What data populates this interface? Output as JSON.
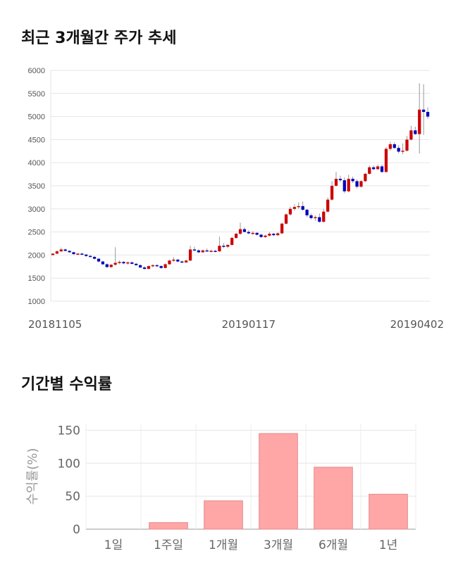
{
  "headings": {
    "price_chart": "최근 3개월간 주가 추세",
    "returns_chart": "기간별 수익률"
  },
  "chart_data": [
    {
      "type": "candlestick",
      "ylim": [
        1000,
        6000
      ],
      "yticks": [
        1000,
        1500,
        2000,
        2500,
        3000,
        3500,
        4000,
        4500,
        5000,
        5500,
        6000
      ],
      "xticks": [
        {
          "index": 0,
          "label": "20181105"
        },
        {
          "index": 47,
          "label": "20190117"
        },
        {
          "index": 97,
          "label": "20190402"
        }
      ],
      "grid": true,
      "colors": {
        "up": "#cc0000",
        "down": "#0000bb",
        "wick": "#999999"
      },
      "candles": [
        [
          2000,
          2040,
          1990,
          2030
        ],
        [
          2030,
          2100,
          2020,
          2080
        ],
        [
          2080,
          2160,
          2060,
          2120
        ],
        [
          2120,
          2140,
          2080,
          2090
        ],
        [
          2090,
          2100,
          2050,
          2060
        ],
        [
          2060,
          2070,
          2010,
          2020
        ],
        [
          2020,
          2040,
          2000,
          2030
        ],
        [
          2030,
          2050,
          2000,
          2010
        ],
        [
          2010,
          2020,
          1960,
          1980
        ],
        [
          1980,
          2000,
          1950,
          1960
        ],
        [
          1960,
          1980,
          1900,
          1920
        ],
        [
          1920,
          1930,
          1840,
          1860
        ],
        [
          1860,
          1870,
          1780,
          1800
        ],
        [
          1800,
          1820,
          1720,
          1740
        ],
        [
          1740,
          1800,
          1720,
          1790
        ],
        [
          1790,
          2170,
          1770,
          1830
        ],
        [
          1830,
          1880,
          1800,
          1850
        ],
        [
          1850,
          1870,
          1800,
          1820
        ],
        [
          1820,
          1860,
          1790,
          1840
        ],
        [
          1840,
          1860,
          1800,
          1810
        ],
        [
          1810,
          1830,
          1770,
          1780
        ],
        [
          1780,
          1800,
          1720,
          1730
        ],
        [
          1730,
          1760,
          1680,
          1700
        ],
        [
          1700,
          1770,
          1690,
          1760
        ],
        [
          1760,
          1800,
          1730,
          1780
        ],
        [
          1780,
          1800,
          1740,
          1760
        ],
        [
          1760,
          1780,
          1700,
          1720
        ],
        [
          1720,
          1820,
          1710,
          1800
        ],
        [
          1800,
          1900,
          1790,
          1880
        ],
        [
          1880,
          1950,
          1850,
          1900
        ],
        [
          1900,
          1920,
          1840,
          1860
        ],
        [
          1860,
          1880,
          1820,
          1840
        ],
        [
          1840,
          1900,
          1830,
          1880
        ],
        [
          1880,
          2200,
          1870,
          2120
        ],
        [
          2120,
          2180,
          2080,
          2100
        ],
        [
          2100,
          2130,
          2040,
          2060
        ],
        [
          2060,
          2120,
          2050,
          2100
        ],
        [
          2100,
          2140,
          2070,
          2080
        ],
        [
          2080,
          2120,
          2060,
          2090
        ],
        [
          2090,
          2110,
          2060,
          2080
        ],
        [
          2080,
          2400,
          2070,
          2200
        ],
        [
          2200,
          2260,
          2150,
          2180
        ],
        [
          2180,
          2230,
          2150,
          2220
        ],
        [
          2220,
          2400,
          2200,
          2370
        ],
        [
          2370,
          2480,
          2350,
          2460
        ],
        [
          2460,
          2700,
          2440,
          2560
        ],
        [
          2560,
          2600,
          2490,
          2500
        ],
        [
          2500,
          2540,
          2450,
          2470
        ],
        [
          2470,
          2520,
          2440,
          2480
        ],
        [
          2480,
          2500,
          2420,
          2440
        ],
        [
          2440,
          2460,
          2370,
          2390
        ],
        [
          2390,
          2440,
          2370,
          2420
        ],
        [
          2420,
          2500,
          2400,
          2460
        ],
        [
          2460,
          2480,
          2410,
          2430
        ],
        [
          2430,
          2490,
          2410,
          2470
        ],
        [
          2470,
          2700,
          2450,
          2680
        ],
        [
          2680,
          2900,
          2660,
          2880
        ],
        [
          2880,
          3050,
          2850,
          3000
        ],
        [
          3000,
          3100,
          2960,
          3040
        ],
        [
          3040,
          3140,
          3000,
          3060
        ],
        [
          3060,
          3160,
          2960,
          2980
        ],
        [
          2980,
          3000,
          2820,
          2860
        ],
        [
          2860,
          2900,
          2770,
          2800
        ],
        [
          2800,
          2860,
          2740,
          2820
        ],
        [
          2820,
          2900,
          2700,
          2720
        ],
        [
          2720,
          3000,
          2700,
          2940
        ],
        [
          2940,
          3250,
          2920,
          3200
        ],
        [
          3200,
          3600,
          3180,
          3500
        ],
        [
          3500,
          3800,
          3480,
          3650
        ],
        [
          3650,
          3720,
          3580,
          3620
        ],
        [
          3620,
          3680,
          3340,
          3380
        ],
        [
          3380,
          3740,
          3360,
          3650
        ],
        [
          3650,
          3700,
          3560,
          3600
        ],
        [
          3600,
          3640,
          3440,
          3480
        ],
        [
          3480,
          3620,
          3460,
          3600
        ],
        [
          3600,
          3780,
          3580,
          3760
        ],
        [
          3760,
          3940,
          3740,
          3900
        ],
        [
          3900,
          3940,
          3840,
          3860
        ],
        [
          3860,
          3960,
          3840,
          3920
        ],
        [
          3920,
          3960,
          3780,
          3800
        ],
        [
          3800,
          4340,
          3780,
          4300
        ],
        [
          4300,
          4450,
          4260,
          4400
        ],
        [
          4400,
          4440,
          4300,
          4320
        ],
        [
          4320,
          4380,
          4200,
          4240
        ],
        [
          4240,
          4420,
          4180,
          4260
        ],
        [
          4260,
          4580,
          4240,
          4500
        ],
        [
          4500,
          4800,
          4480,
          4700
        ],
        [
          4700,
          4780,
          4600,
          4620
        ],
        [
          4620,
          5720,
          4200,
          5150
        ],
        [
          5150,
          5700,
          4600,
          5100
        ],
        [
          5100,
          5200,
          4950,
          5000
        ]
      ]
    },
    {
      "type": "bar",
      "ylabel": "수익률(%)",
      "ylim": [
        0,
        160
      ],
      "yticks": [
        0,
        50,
        100,
        150
      ],
      "categories": [
        "1일",
        "1주일",
        "1개월",
        "3개월",
        "6개월",
        "1년"
      ],
      "values": [
        0,
        10,
        43,
        145,
        94,
        53
      ],
      "grid": true,
      "colors": {
        "bar": "#ffa6a6",
        "bar_edge": "#e58a8a"
      }
    }
  ]
}
